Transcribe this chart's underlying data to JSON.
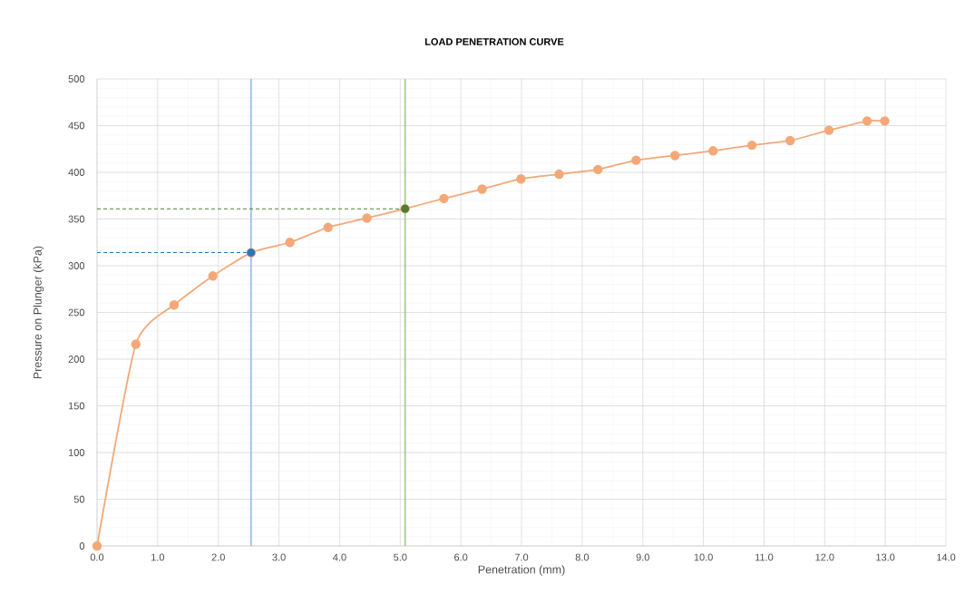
{
  "chart_data": {
    "type": "line",
    "title": "LOAD PENETRATION CURVE",
    "xlabel": "Penetration (mm)",
    "ylabel": "Pressure on Plunger (kPa)",
    "xlim": [
      0,
      14
    ],
    "ylim": [
      0,
      500
    ],
    "xticks": [
      {
        "value": 0,
        "label": "0.0"
      },
      {
        "value": 1,
        "label": "1.0"
      },
      {
        "value": 2,
        "label": "2.0"
      },
      {
        "value": 3,
        "label": "3.0"
      },
      {
        "value": 4,
        "label": "4.0"
      },
      {
        "value": 5,
        "label": "5.0"
      },
      {
        "value": 6,
        "label": "6.0"
      },
      {
        "value": 7,
        "label": "7.0"
      },
      {
        "value": 8,
        "label": "8.0"
      },
      {
        "value": 9,
        "label": "9.0"
      },
      {
        "value": 10,
        "label": "10.0"
      },
      {
        "value": 11,
        "label": "11.0"
      },
      {
        "value": 12,
        "label": "12.0"
      },
      {
        "value": 13,
        "label": "13.0"
      },
      {
        "value": 14,
        "label": "14.0"
      }
    ],
    "yticks": [
      0,
      50,
      100,
      150,
      200,
      250,
      300,
      350,
      400,
      450,
      500
    ],
    "grid": true,
    "series": [
      {
        "color": "#f4a878",
        "marker": "circle",
        "line_style": "solid",
        "x": [
          0,
          0.64,
          1.27,
          1.91,
          2.54,
          3.18,
          3.81,
          4.45,
          5.08,
          5.72,
          6.35,
          6.99,
          7.62,
          8.26,
          8.89,
          9.53,
          10.16,
          10.8,
          11.43,
          12.07,
          12.7,
          12.99
        ],
        "values": [
          0,
          216,
          258,
          289,
          314,
          325,
          341,
          351,
          361,
          372,
          382,
          393,
          398,
          403,
          413,
          418,
          423,
          429,
          434,
          445,
          455,
          455
        ]
      },
      {
        "color": "#2e75b6",
        "marker": "none",
        "line_style": "dashed",
        "x": [
          0,
          2.54
        ],
        "values": [
          314,
          314
        ]
      },
      {
        "color": "#548235",
        "marker": "none",
        "line_style": "dashed",
        "x": [
          0,
          5.08
        ],
        "values": [
          361,
          361
        ]
      },
      {
        "type": "scatter",
        "color": "#2e75b6",
        "marker": "circle",
        "x": [
          2.54
        ],
        "values": [
          314
        ]
      },
      {
        "type": "scatter",
        "color": "#4d7f2f",
        "marker": "circle",
        "x": [
          5.08
        ],
        "values": [
          361
        ]
      }
    ],
    "ref_lines": [
      {
        "axis": "x",
        "value": 2.54,
        "color": "#8fb4e3"
      },
      {
        "axis": "x",
        "value": 5.08,
        "color": "#9bc47c"
      }
    ]
  }
}
